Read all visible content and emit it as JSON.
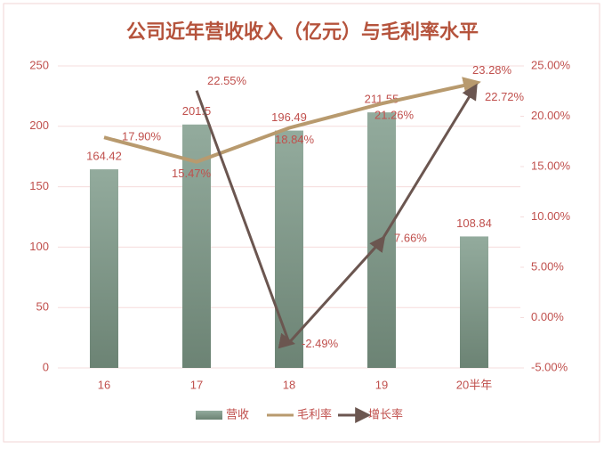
{
  "chart_data": {
    "type": "combo",
    "title": "公司近年营收收入（亿元）与毛利率水平",
    "categories": [
      "16",
      "17",
      "18",
      "19",
      "20半年"
    ],
    "series": [
      {
        "name": "营收",
        "type": "bar",
        "color": "#7f9888",
        "values": [
          164.42,
          201.5,
          196.49,
          211.55,
          108.84
        ]
      },
      {
        "name": "毛利率",
        "type": "line",
        "axis": "y2",
        "color": "#b89a6e",
        "values": [
          17.9,
          15.47,
          18.84,
          21.26,
          23.28
        ],
        "value_labels": [
          "17.90%",
          "15.47%",
          "18.84%",
          "21.26%",
          "23.28%"
        ]
      },
      {
        "name": "增长率",
        "type": "line",
        "axis": "y2",
        "color": "#6b5650",
        "values": [
          null,
          22.55,
          -2.49,
          7.66,
          22.72
        ],
        "value_labels": [
          null,
          "22.55%",
          "-2.49%",
          "7.66%",
          "22.72%"
        ]
      }
    ],
    "ylim": [
      0,
      250
    ],
    "yticks": [
      0,
      50,
      100,
      150,
      200,
      250
    ],
    "y2lim": [
      -5,
      25
    ],
    "y2ticks": [
      {
        "value": -5,
        "label": "-5.00%"
      },
      {
        "value": 0,
        "label": "0.00%"
      },
      {
        "value": 5,
        "label": "5.00%"
      },
      {
        "value": 10,
        "label": "10.00%"
      },
      {
        "value": 15,
        "label": "15.00%"
      },
      {
        "value": 20,
        "label": "20.00%"
      },
      {
        "value": 25,
        "label": "25.00%"
      }
    ],
    "grid": true,
    "legend": "bottom"
  }
}
